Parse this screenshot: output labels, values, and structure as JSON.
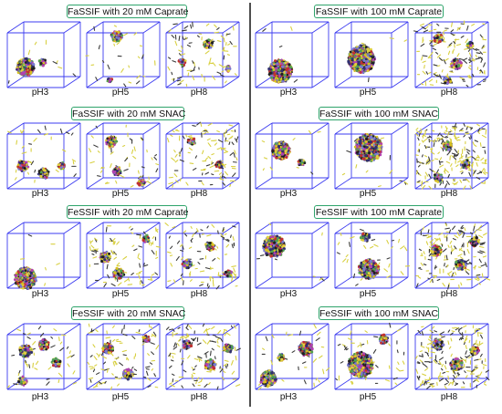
{
  "panels": [
    {
      "title": "FaSSIF with 20 mM Caprate",
      "labels": [
        "pH3",
        "pH5",
        "pH8"
      ]
    },
    {
      "title": "FaSSIF with 100 mM Caprate",
      "labels": [
        "pH3",
        "pH5",
        "pH8"
      ]
    },
    {
      "title": "FaSSIF with 20 mM SNAC",
      "labels": [
        "pH3",
        "pH5",
        "pH8"
      ]
    },
    {
      "title": "FaSSIF with 100 mM SNAC",
      "labels": [
        "pH3",
        "pH5",
        "pH8"
      ]
    },
    {
      "title": "FeSSIF with 20 mM Caprate",
      "labels": [
        "pH3",
        "pH5",
        "pH8"
      ]
    },
    {
      "title": "FeSSIF with 100 mM Caprate",
      "labels": [
        "pH3",
        "pH5",
        "pH8"
      ]
    },
    {
      "title": "FeSSIF with 20 mM SNAC",
      "labels": [
        "pH3",
        "pH5",
        "pH8"
      ]
    },
    {
      "title": "FeSSIF with 100 mM SNAC",
      "labels": [
        "pH3",
        "pH5",
        "pH8"
      ]
    }
  ],
  "colors": {
    "box_edge": "#3b3bf0",
    "divider": "#222222",
    "title_border": "#2ea36a",
    "micelle_palette": [
      "#d8c020",
      "#e0d040",
      "#7a7ad0",
      "#c03030",
      "#303070",
      "#b040b0",
      "#202020",
      "#50a050"
    ],
    "free_molecule": [
      "#d8d040",
      "#3a3a3a"
    ]
  }
}
